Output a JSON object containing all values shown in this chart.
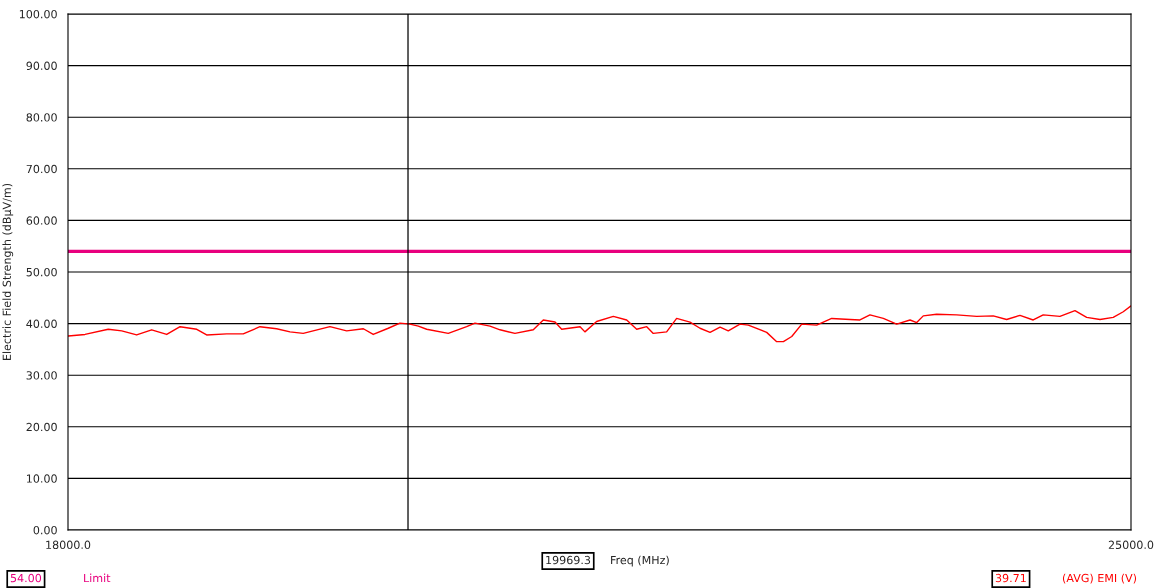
{
  "chart_data": {
    "type": "line",
    "xlabel": "Freq (MHz)",
    "ylabel": "Electric Field Strength (dBμV/m)",
    "xlim": [
      18000,
      25000
    ],
    "ylim": [
      0,
      100
    ],
    "xticks": [
      {
        "value": 18000,
        "label": "18000.0"
      },
      {
        "value": 25000,
        "label": "25000.0"
      }
    ],
    "yticks": [
      {
        "value": 0,
        "label": "0.00"
      },
      {
        "value": 10,
        "label": "10.00"
      },
      {
        "value": 20,
        "label": "20.00"
      },
      {
        "value": 30,
        "label": "30.00"
      },
      {
        "value": 40,
        "label": "40.00"
      },
      {
        "value": 50,
        "label": "50.00"
      },
      {
        "value": 60,
        "label": "60.00"
      },
      {
        "value": 70,
        "label": "70.00"
      },
      {
        "value": 80,
        "label": "80.00"
      },
      {
        "value": 90,
        "label": "90.00"
      },
      {
        "value": 100,
        "label": "100.00"
      }
    ],
    "grid": "y",
    "legend": false,
    "series": [
      {
        "name": "(AVG) EMI (V)",
        "color": "#ff0000",
        "x": [
          18002,
          18112,
          18265,
          18354,
          18452,
          18551,
          18650,
          18738,
          18848,
          18913,
          19045,
          19154,
          19264,
          19374,
          19462,
          19549,
          19725,
          19835,
          19945,
          20010,
          20109,
          20186,
          20252,
          20307,
          20362,
          20504,
          20625,
          20680,
          20779,
          20845,
          20943,
          21064,
          21130,
          21207,
          21251,
          21372,
          21404,
          21481,
          21591,
          21679,
          21745,
          21811,
          21854,
          21942,
          22008,
          22096,
          22162,
          22228,
          22294,
          22348,
          22425,
          22480,
          22601,
          22667,
          22711,
          22766,
          22832,
          22930,
          23029,
          23150,
          23215,
          23281,
          23369,
          23457,
          23545,
          23589,
          23632,
          23720,
          23852,
          23984,
          24093,
          24181,
          24269,
          24356,
          24422,
          24532,
          24631,
          24708,
          24796,
          24883,
          24949,
          24998
        ],
        "values": [
          37.6,
          37.9,
          38.9,
          38.6,
          37.8,
          38.8,
          37.9,
          39.4,
          38.9,
          37.8,
          38.0,
          38.0,
          39.4,
          39.0,
          38.4,
          38.1,
          39.4,
          38.6,
          39.0,
          37.9,
          39.1,
          40.1,
          39.9,
          39.5,
          38.9,
          38.1,
          39.4,
          40.1,
          39.5,
          38.8,
          38.1,
          38.8,
          40.7,
          40.3,
          38.9,
          39.4,
          38.4,
          40.4,
          41.4,
          40.7,
          38.9,
          39.4,
          38.1,
          38.4,
          41.0,
          40.3,
          39.1,
          38.3,
          39.3,
          38.6,
          39.9,
          39.7,
          38.3,
          36.5,
          36.5,
          37.5,
          39.9,
          39.7,
          41.0,
          40.8,
          40.7,
          41.7,
          41.0,
          39.9,
          40.7,
          40.2,
          41.5,
          41.8,
          41.7,
          41.4,
          41.5,
          40.8,
          41.6,
          40.7,
          41.7,
          41.4,
          42.5,
          41.2,
          40.8,
          41.2,
          42.3,
          43.4
        ]
      }
    ],
    "ref_lines": [
      {
        "axis": "y",
        "value": 54,
        "label": "Limit",
        "color": "#e8007e"
      },
      {
        "axis": "x",
        "value": 20239,
        "color": "#000000"
      }
    ],
    "annotations": [
      "19969.3",
      "54.00",
      "39.71"
    ]
  }
}
